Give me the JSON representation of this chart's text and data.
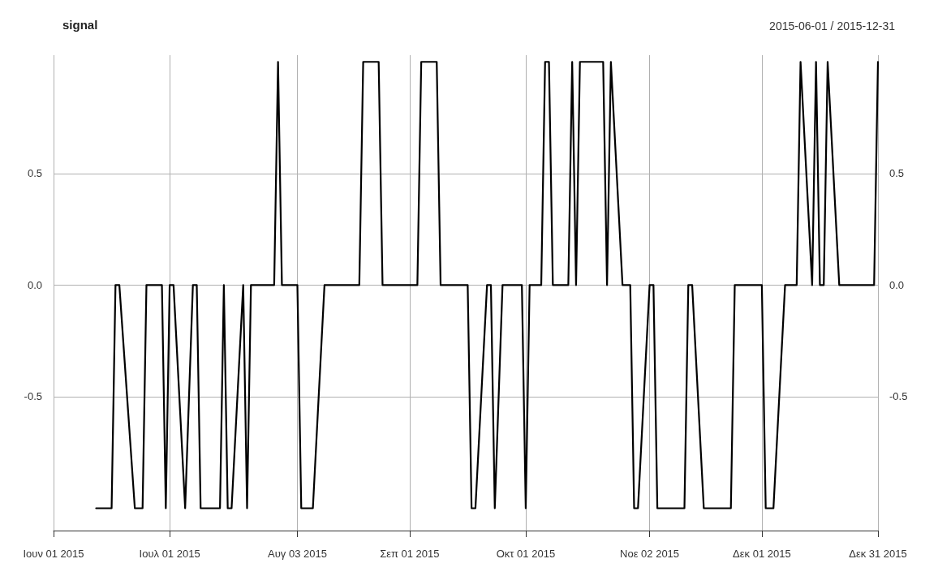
{
  "chart_data": {
    "type": "line",
    "title": "signal",
    "subtitle": "2015-06-01 / 2015-12-31",
    "x": [
      "2015-06-12",
      "2015-06-16",
      "2015-06-17",
      "2015-06-18",
      "2015-06-22",
      "2015-06-24",
      "2015-06-25",
      "2015-06-29",
      "2015-06-30",
      "2015-07-01",
      "2015-07-02",
      "2015-07-05",
      "2015-07-07",
      "2015-07-08",
      "2015-07-09",
      "2015-07-14",
      "2015-07-15",
      "2015-07-16",
      "2015-07-17",
      "2015-07-20",
      "2015-07-21",
      "2015-07-22",
      "2015-07-28",
      "2015-07-29",
      "2015-07-30",
      "2015-08-03",
      "2015-08-04",
      "2015-08-07",
      "2015-08-10",
      "2015-08-19",
      "2015-08-20",
      "2015-08-24",
      "2015-08-25",
      "2015-09-03",
      "2015-09-04",
      "2015-09-08",
      "2015-09-09",
      "2015-09-16",
      "2015-09-17",
      "2015-09-18",
      "2015-09-21",
      "2015-09-22",
      "2015-09-23",
      "2015-09-25",
      "2015-09-30",
      "2015-10-01",
      "2015-10-02",
      "2015-10-05",
      "2015-10-06",
      "2015-10-07",
      "2015-10-08",
      "2015-10-12",
      "2015-10-13",
      "2015-10-14",
      "2015-10-15",
      "2015-10-21",
      "2015-10-22",
      "2015-10-23",
      "2015-10-26",
      "2015-10-28",
      "2015-10-29",
      "2015-10-30",
      "2015-11-02",
      "2015-11-03",
      "2015-11-04",
      "2015-11-11",
      "2015-11-12",
      "2015-11-13",
      "2015-11-16",
      "2015-11-23",
      "2015-11-24",
      "2015-12-01",
      "2015-12-02",
      "2015-12-04",
      "2015-12-07",
      "2015-12-10",
      "2015-12-11",
      "2015-12-14",
      "2015-12-15",
      "2015-12-16",
      "2015-12-17",
      "2015-12-18",
      "2015-12-21",
      "2015-12-30",
      "2015-12-31"
    ],
    "series": [
      {
        "color": "#000000",
        "values": [
          -1,
          -1,
          0,
          0,
          -1,
          -1,
          0,
          0,
          -1,
          0,
          0,
          -1,
          0,
          0,
          -1,
          -1,
          0,
          -1,
          -1,
          0,
          -1,
          0,
          0,
          1,
          0,
          0,
          -1,
          -1,
          0,
          0,
          1,
          1,
          0,
          0,
          1,
          1,
          0,
          0,
          -1,
          -1,
          0,
          0,
          -1,
          0,
          0,
          -1,
          0,
          0,
          1,
          1,
          0,
          0,
          1,
          0,
          1,
          1,
          0,
          1,
          0,
          0,
          -1,
          -1,
          0,
          0,
          -1,
          -1,
          0,
          0,
          -1,
          -1,
          0,
          0,
          -1,
          -1,
          0,
          0,
          1,
          0,
          1,
          0,
          0,
          1,
          0,
          0,
          1
        ]
      }
    ],
    "xlim": [
      "2015-06-01",
      "2015-12-31"
    ],
    "xticks": [
      {
        "value": "2015-06-01",
        "label": "Ιουν 01 2015"
      },
      {
        "value": "2015-07-01",
        "label": "Ιουλ 01 2015"
      },
      {
        "value": "2015-08-03",
        "label": "Αυγ 03 2015"
      },
      {
        "value": "2015-09-01",
        "label": "Σεπ 01 2015"
      },
      {
        "value": "2015-10-01",
        "label": "Οκτ 01 2015"
      },
      {
        "value": "2015-11-02",
        "label": "Νοε 02 2015"
      },
      {
        "value": "2015-12-01",
        "label": "Δεκ 01 2015"
      },
      {
        "value": "2015-12-31",
        "label": "Δεκ 31 2015"
      }
    ],
    "ylim": [
      -1.1,
      1.03
    ],
    "yticks": [
      {
        "value": -0.5,
        "label": "-0.5"
      },
      {
        "value": 0,
        "label": "0.0"
      },
      {
        "value": 0.5,
        "label": "0.5"
      }
    ],
    "y2lim": [
      -1.1,
      1.03
    ],
    "y2ticks": [
      {
        "value": -0.5,
        "label": "-0.5"
      },
      {
        "value": 0,
        "label": "0.0"
      },
      {
        "value": 0.5,
        "label": "0.5"
      }
    ],
    "grid": true
  }
}
